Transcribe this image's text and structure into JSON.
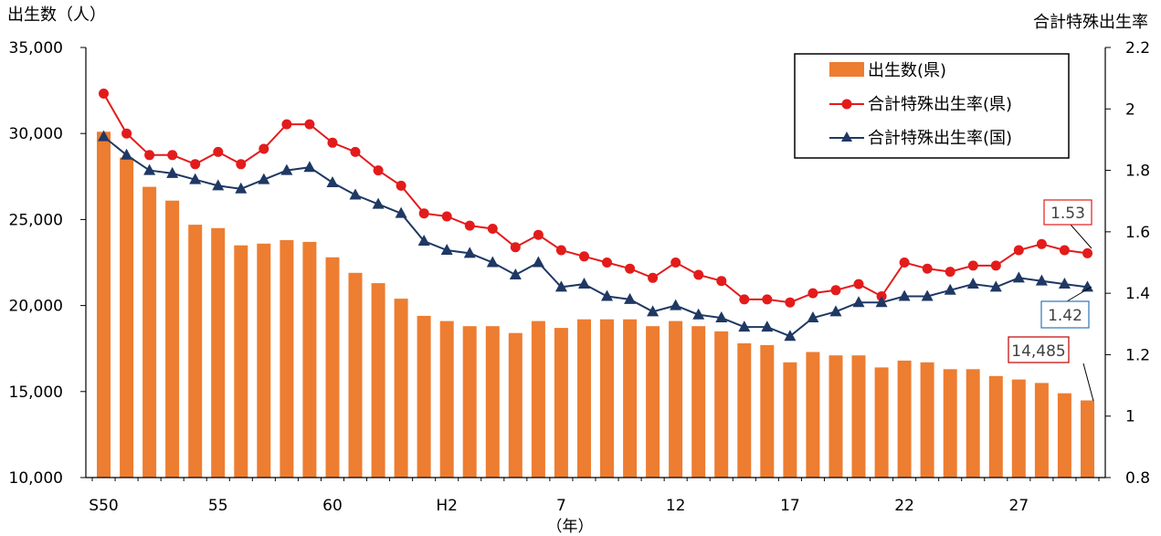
{
  "chart_data": {
    "type": "bar",
    "left_axis_title": "出生数（人）",
    "right_axis_title": "合計特殊出生率",
    "x_unit_label": "（年）",
    "x_tick_labels": [
      "S50",
      "55",
      "60",
      "H2",
      "7",
      "12",
      "17",
      "22",
      "27"
    ],
    "x_tick_positions": [
      0,
      5,
      10,
      15,
      20,
      25,
      30,
      35,
      40
    ],
    "left_ticks": [
      "10,000",
      "15,000",
      "20,000",
      "25,000",
      "30,000",
      "35,000"
    ],
    "right_ticks": [
      "0.8",
      "1",
      "1.2",
      "1.4",
      "1.6",
      "1.8",
      "2",
      "2.2"
    ],
    "ylim_left": [
      10000,
      35000
    ],
    "ylim_right": [
      0.8,
      2.2
    ],
    "series": [
      {
        "name": "出生数(県)",
        "kind": "bar",
        "axis": "left",
        "color": "#ED7D31",
        "values": [
          30100,
          28600,
          26900,
          26100,
          24700,
          24500,
          23500,
          23600,
          23800,
          23700,
          22800,
          21900,
          21300,
          20400,
          19400,
          19100,
          18800,
          18800,
          18400,
          19100,
          18700,
          19200,
          19200,
          19200,
          18800,
          19100,
          18800,
          18500,
          17800,
          17700,
          16700,
          17300,
          17100,
          17100,
          16400,
          16800,
          16700,
          16300,
          16300,
          15900,
          15700,
          15500,
          14900,
          14485
        ]
      },
      {
        "name": "合計特殊出生率(県)",
        "kind": "line",
        "axis": "right",
        "color": "#E31B1B",
        "marker": "circle",
        "values": [
          2.05,
          1.92,
          1.85,
          1.85,
          1.82,
          1.86,
          1.82,
          1.87,
          1.95,
          1.95,
          1.89,
          1.86,
          1.8,
          1.75,
          1.66,
          1.65,
          1.62,
          1.61,
          1.55,
          1.59,
          1.54,
          1.52,
          1.5,
          1.48,
          1.45,
          1.5,
          1.46,
          1.44,
          1.38,
          1.38,
          1.37,
          1.4,
          1.41,
          1.43,
          1.39,
          1.5,
          1.48,
          1.47,
          1.49,
          1.49,
          1.54,
          1.56,
          1.54,
          1.53
        ]
      },
      {
        "name": "合計特殊出生率(国)",
        "kind": "line",
        "axis": "right",
        "color": "#1F3864",
        "marker": "triangle",
        "values": [
          1.91,
          1.85,
          1.8,
          1.79,
          1.77,
          1.75,
          1.74,
          1.77,
          1.8,
          1.81,
          1.76,
          1.72,
          1.69,
          1.66,
          1.57,
          1.54,
          1.53,
          1.5,
          1.46,
          1.5,
          1.42,
          1.43,
          1.39,
          1.38,
          1.34,
          1.36,
          1.33,
          1.32,
          1.29,
          1.29,
          1.26,
          1.32,
          1.34,
          1.37,
          1.37,
          1.39,
          1.39,
          1.41,
          1.43,
          1.42,
          1.45,
          1.44,
          1.43,
          1.42
        ]
      }
    ],
    "callouts": [
      {
        "text": "1.53",
        "color": "#E31B1B"
      },
      {
        "text": "1.42",
        "color": "#2E75B6"
      },
      {
        "text": "14,485",
        "color": "#C00000"
      }
    ],
    "legend_position": "top-right",
    "grid": false
  }
}
